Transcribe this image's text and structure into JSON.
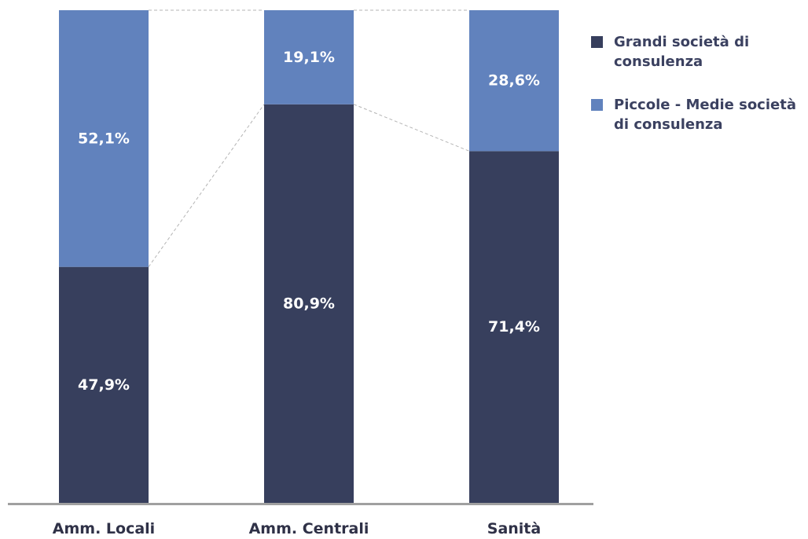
{
  "colors": {
    "grandi": "#373f5d",
    "piccole": "#6182bd",
    "axis": "#a0a0a0",
    "connector": "#b4b4b4",
    "category_text": "#2f3147",
    "legend_text": "#3b4160"
  },
  "legend": {
    "items": [
      {
        "label": "Grandi società di consulenza",
        "color": "#373f5d"
      },
      {
        "label": "Piccole - Medie società di consulenza",
        "color": "#6182bd"
      }
    ]
  },
  "chart_data": {
    "type": "bar",
    "stacked": true,
    "percent": true,
    "title": "",
    "xlabel": "",
    "ylabel": "",
    "ylim": [
      0,
      100
    ],
    "grid": false,
    "legend_position": "right",
    "categories": [
      "Amm. Locali",
      "Amm. Centrali",
      "Sanità"
    ],
    "series": [
      {
        "name": "Grandi società di consulenza",
        "color": "#373f5d",
        "values": [
          47.9,
          80.9,
          71.4
        ],
        "labels": [
          "47,9%",
          "80,9%",
          "71,4%"
        ]
      },
      {
        "name": "Piccole - Medie società di consulenza",
        "color": "#6182bd",
        "values": [
          52.1,
          19.1,
          28.6
        ],
        "labels": [
          "52,1%",
          "19,1%",
          "28,6%"
        ]
      }
    ]
  }
}
